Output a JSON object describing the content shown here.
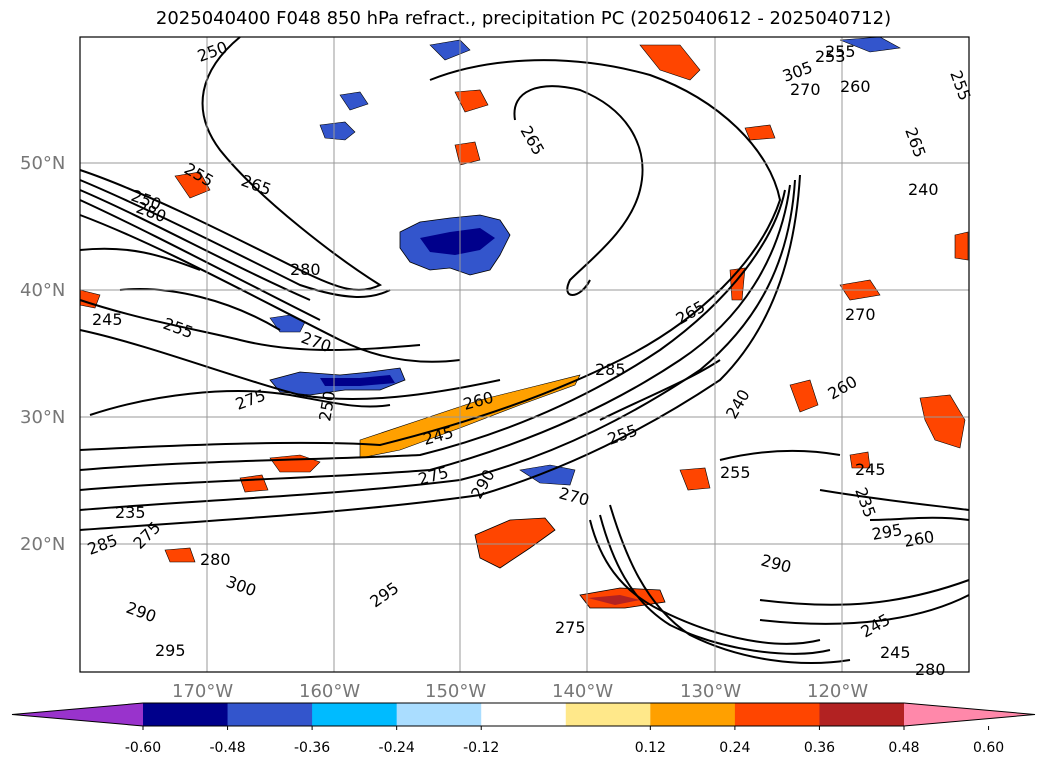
{
  "title": "2025040400 F048 850 hPa refract., precipitation PC (2025040612 - 2025040712)",
  "map": {
    "lon_ticks": [
      "170°W",
      "160°W",
      "150°W",
      "140°W",
      "130°W",
      "120°W"
    ],
    "lat_ticks": [
      "50°N",
      "40°N",
      "30°N",
      "20°N"
    ],
    "grid": true,
    "contour_color": "#000000"
  },
  "contour_labels": [
    "250",
    "255",
    "265",
    "265",
    "250",
    "280",
    "280",
    "245",
    "255",
    "270",
    "275",
    "260",
    "250",
    "245",
    "255",
    "265",
    "285",
    "275",
    "290",
    "270",
    "255",
    "235",
    "285",
    "275",
    "280",
    "295",
    "290",
    "275",
    "295",
    "290",
    "295",
    "260",
    "240",
    "235",
    "245",
    "245",
    "280",
    "300",
    "305",
    "260",
    "270",
    "245",
    "240",
    "265",
    "255",
    "255",
    "260",
    "270",
    "253"
  ],
  "colorbar": {
    "ticks": [
      "-0.60",
      "-0.48",
      "-0.36",
      "-0.24",
      "-0.12",
      "0.12",
      "0.24",
      "0.36",
      "0.48",
      "0.60"
    ],
    "colors": [
      "#9933cc",
      "#00008b",
      "#3355cc",
      "#00bbff",
      "#aaddff",
      "#ffffff",
      "#ffe88a",
      "#ffa000",
      "#ff4500",
      "#b22222",
      "#ff88aa"
    ]
  }
}
